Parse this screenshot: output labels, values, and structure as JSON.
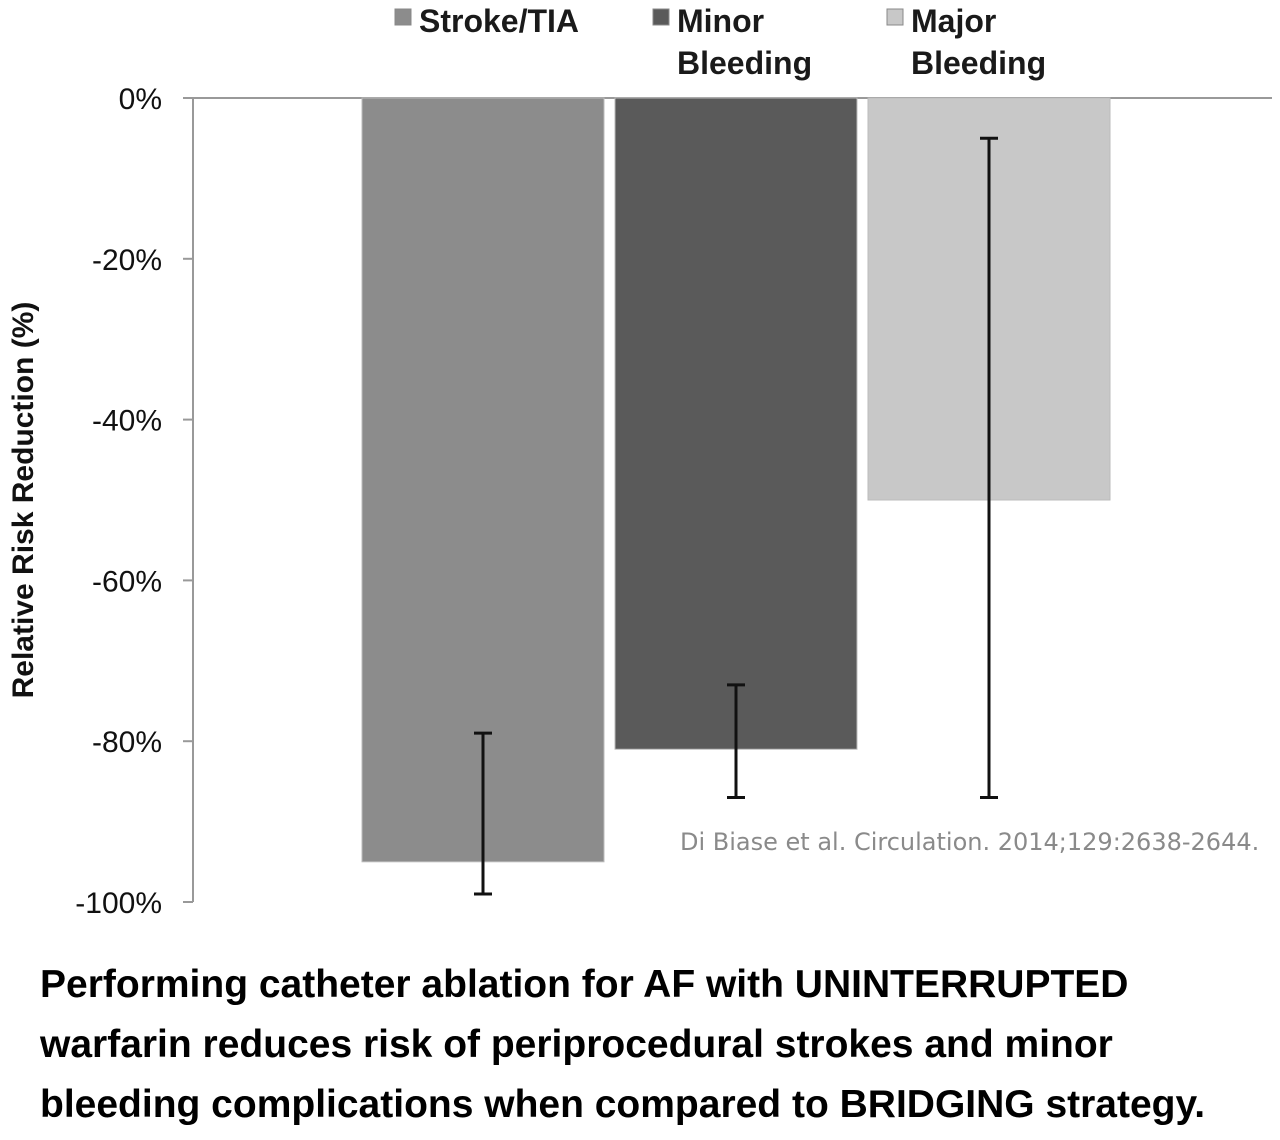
{
  "chart_data": {
    "type": "bar",
    "ylabel": "Relative Risk Reduction (%)",
    "ylim": [
      -100,
      0
    ],
    "yticks": [
      "0%",
      "-20%",
      "-40%",
      "-60%",
      "-80%",
      "-100%"
    ],
    "ytick_values": [
      0,
      -20,
      -40,
      -60,
      -80,
      -100
    ],
    "legend_position": "top",
    "series": [
      {
        "name": "Stroke/TIA",
        "legend_lines": [
          "Stroke/TIA"
        ],
        "value": -95,
        "error_low": -99,
        "error_high": -79,
        "color": "#8c8c8c"
      },
      {
        "name": "Minor Bleeding",
        "legend_lines": [
          "Minor",
          "Bleeding"
        ],
        "value": -81,
        "error_low": -87,
        "error_high": -73,
        "color": "#5a5a5a"
      },
      {
        "name": "Major Bleeding",
        "legend_lines": [
          "Major",
          "Bleeding"
        ],
        "value": -50,
        "error_low": -87,
        "error_high": -5,
        "color": "#c8c8c8"
      }
    ],
    "grid": false
  },
  "citation": "Di Biase et al. Circulation. 2014;129:2638-2644.",
  "caption": "Performing catheter ablation for AF with UNINTERRUPTED warfarin reduces risk of periprocedural strokes and minor bleeding complications when compared to BRIDGING strategy."
}
